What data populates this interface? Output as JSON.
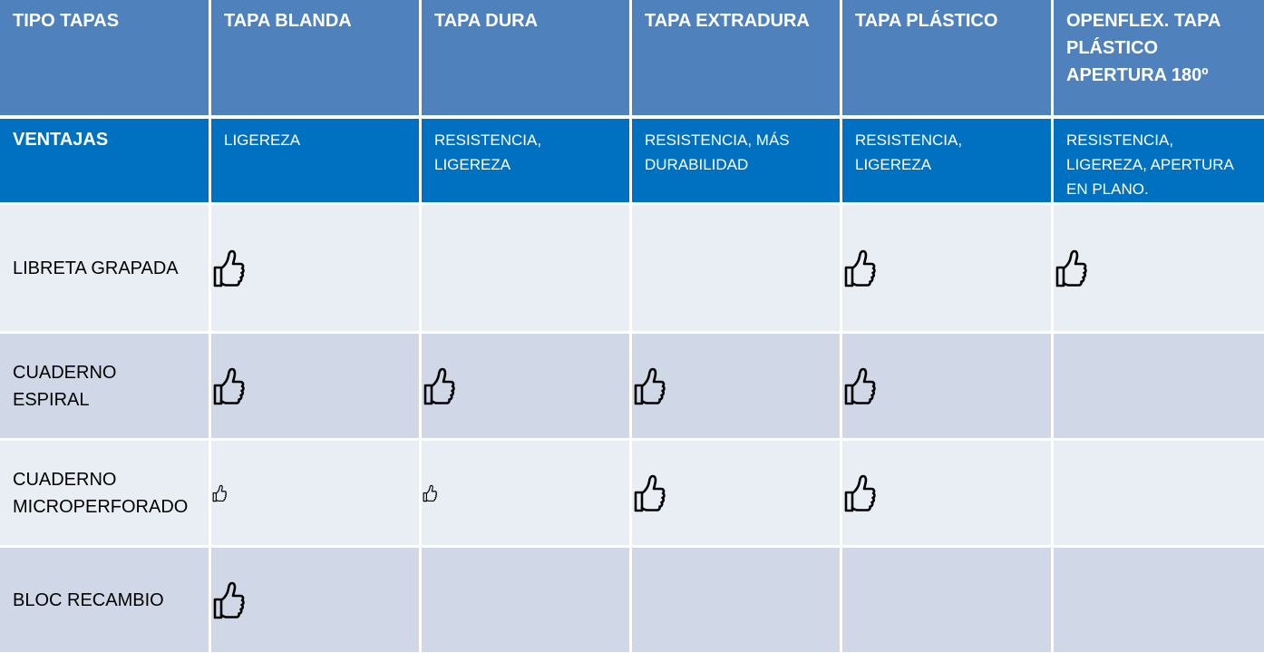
{
  "table": {
    "header": [
      "TIPO TAPAS",
      "TAPA BLANDA",
      "TAPA DURA",
      "TAPA EXTRADURA",
      "TAPA PLÁSTICO",
      "OPENFLEX. TAPA PLÁSTICO APERTURA 180º"
    ],
    "ventajas": {
      "label": "VENTAJAS",
      "cells": [
        "LIGEREZA",
        "RESISTENCIA, LIGEREZA",
        "RESISTENCIA, MÁS DURABILIDAD",
        "RESISTENCIA, LIGEREZA",
        "RESISTENCIA, LIGEREZA, APERTURA EN PLANO."
      ]
    },
    "rows": [
      {
        "label": "LIBRETA GRAPADA",
        "marks": [
          "thumbs-up",
          "",
          "",
          "thumbs-up",
          "thumbs-up"
        ]
      },
      {
        "label": "CUADERNO ESPIRAL",
        "marks": [
          "thumbs-up",
          "thumbs-up",
          "thumbs-up",
          "thumbs-up",
          ""
        ]
      },
      {
        "label": "CUADERNO MICROPERFORADO",
        "marks": [
          "thumbs-up-small",
          "thumbs-up-small",
          "thumbs-up",
          "thumbs-up",
          ""
        ]
      },
      {
        "label": "BLOC RECAMBIO",
        "marks": [
          "thumbs-up",
          "",
          "",
          "",
          ""
        ]
      }
    ]
  },
  "colors": {
    "header_bg": "#4f81bd",
    "ventajas_bg": "#0070c0",
    "row_light": "#e9edf4",
    "row_dark": "#d0d8e8"
  }
}
